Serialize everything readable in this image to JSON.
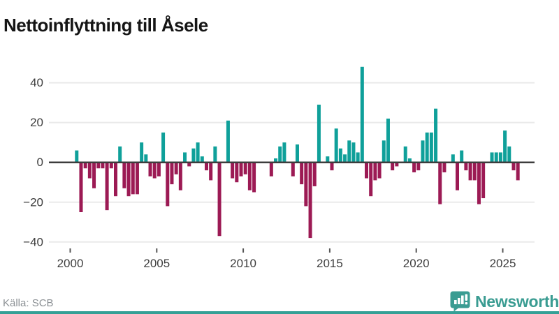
{
  "title": "Nettoinflyttning till Åsele",
  "footer": {
    "source": "Källa: SCB",
    "brand": "Newsworthy"
  },
  "icons": {
    "brand_logo": "speech-bubble-bar-chart-icon"
  },
  "colors": {
    "positive_bar": "#0fa09a",
    "negative_bar": "#9c1a54",
    "grid": "#eaeaea",
    "zero_line": "#3d3d3d",
    "axis_text": "#3e3e3e",
    "tick_mark": "#555555",
    "title_text": "#151515",
    "source_text": "#8a8f93",
    "brand": "#3a9c92",
    "bottom_bar": "#35a096"
  },
  "chart_data": {
    "type": "bar",
    "title": "Nettoinflyttning till Åsele",
    "frequency": "quarterly",
    "x_start": "2000-Q1",
    "x_end": "2025-Q4",
    "ylabel": "",
    "xlabel": "",
    "ylim": [
      -44,
      52
    ],
    "grid": "horizontal",
    "legend": "none",
    "y_ticks": [
      40,
      20,
      0,
      -20,
      -40
    ],
    "y_tick_labels": [
      "40",
      "20",
      "0",
      "−20",
      "−40"
    ],
    "x_tick_years": [
      2000,
      2005,
      2010,
      2015,
      2020,
      2025
    ],
    "x_tick_labels": [
      "2000",
      "2005",
      "2010",
      "2015",
      "2020",
      "2025"
    ],
    "values": [
      0,
      6,
      -25,
      -3,
      -8,
      -13,
      -3,
      -3,
      -24,
      -3,
      -17,
      8,
      -13,
      -17,
      -16,
      -16,
      10,
      4,
      -7,
      -8,
      -7,
      15,
      -22,
      -11,
      -6,
      -14,
      5,
      -2,
      7,
      10,
      3,
      -4,
      -9,
      8,
      -37,
      0,
      21,
      -8,
      -10,
      -7,
      -6,
      -14,
      -15,
      0,
      0,
      0,
      -7,
      2,
      8,
      10,
      0,
      -7,
      9,
      -11,
      -22,
      -38,
      -12,
      29,
      0,
      3,
      -4,
      17,
      7,
      4,
      11,
      10,
      5,
      48,
      -8,
      -17,
      -9,
      -8,
      11,
      22,
      -4,
      -2,
      0,
      8,
      2,
      -5,
      -4,
      11,
      15,
      15,
      27,
      -21,
      -5,
      0,
      4,
      -14,
      6,
      -4,
      -9,
      -9,
      -21,
      -18,
      0,
      5,
      5,
      5,
      16,
      8,
      -4,
      -9
    ]
  }
}
